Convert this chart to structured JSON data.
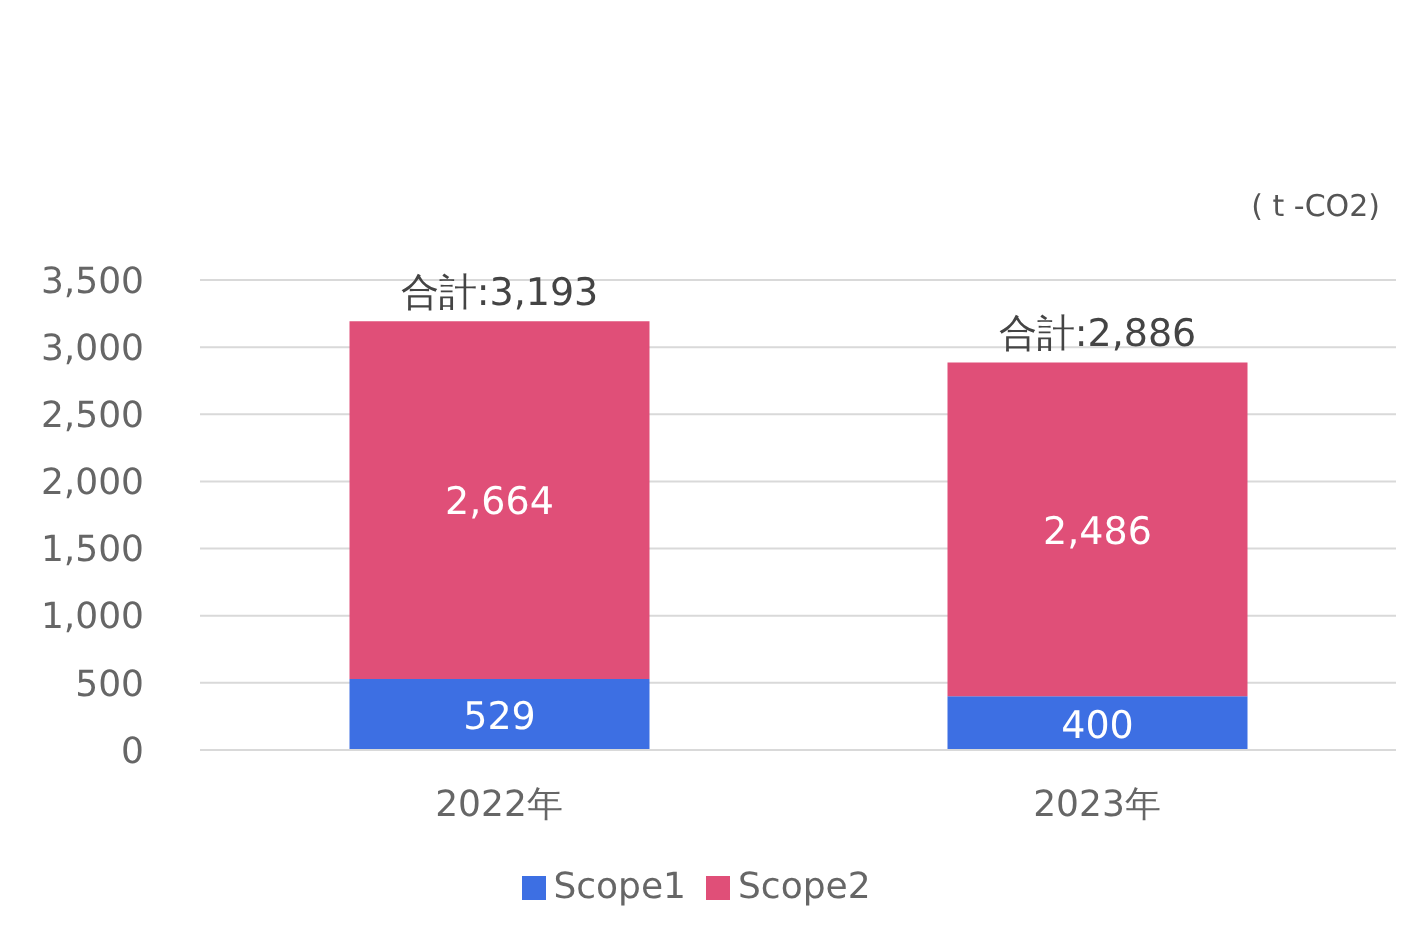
{
  "chart_data": {
    "type": "bar",
    "stacked": true,
    "categories": [
      "2022年",
      "2023年"
    ],
    "series": [
      {
        "name": "Scope1",
        "color": "#3d6fe3",
        "values": [
          529,
          400
        ],
        "value_labels": [
          "529",
          "400"
        ]
      },
      {
        "name": "Scope2",
        "color": "#e04f78",
        "values": [
          2664,
          2486
        ],
        "value_labels": [
          "2,664",
          "2,486"
        ]
      }
    ],
    "totals": [
      "合計:3,193",
      "合計:2,886"
    ],
    "annotations": [
      "( t -CO2)"
    ],
    "ylim": [
      0,
      3500
    ],
    "yticks": [
      {
        "value": 0,
        "label": "0"
      },
      {
        "value": 500,
        "label": "500"
      },
      {
        "value": 1000,
        "label": "1,000"
      },
      {
        "value": 1500,
        "label": "1,500"
      },
      {
        "value": 2000,
        "label": "2,000"
      },
      {
        "value": 2500,
        "label": "2,500"
      },
      {
        "value": 3000,
        "label": "3,000"
      },
      {
        "value": 3500,
        "label": "3,500"
      }
    ],
    "grid": "y",
    "legend": "bottom"
  }
}
